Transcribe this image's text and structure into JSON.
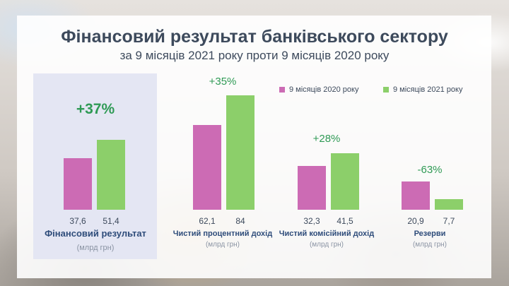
{
  "title": "Фінансовий результат банківського сектору",
  "subtitle": "за 9 місяців 2021 року проти 9 місяців 2020 року",
  "colors": {
    "series_2020": "#cc6bb4",
    "series_2021": "#8ccf6a",
    "accent_pct": "#2f9a55",
    "label": "#2e4c7a"
  },
  "chart_data": {
    "type": "bar",
    "title": "Фінансовий результат банківського сектору",
    "subtitle": "за 9 місяців 2021 року проти 9 місяців 2020 року",
    "legend_position": "top-right",
    "unit": "млрд грн",
    "categories": [
      "Фінансовий результат",
      "Чистий процентний дохід",
      "Чистий комісійний дохід",
      "Резерви"
    ],
    "units": [
      "(млрд грн)",
      "(млрд грн)",
      "(млрд грн)",
      "(млрд грн)"
    ],
    "series": [
      {
        "name": "9 місяців 2020 року",
        "values": [
          37.6,
          62.1,
          32.3,
          20.9
        ],
        "labels": [
          "37,6",
          "62,1",
          "32,3",
          "20,9"
        ]
      },
      {
        "name": "9 місяців 2021 року",
        "values": [
          51.4,
          84,
          41.5,
          7.7
        ],
        "labels": [
          "51,4",
          "84",
          "41,5",
          "7,7"
        ]
      }
    ],
    "changes": [
      "+37%",
      "+35%",
      "+28%",
      "-63%"
    ]
  }
}
